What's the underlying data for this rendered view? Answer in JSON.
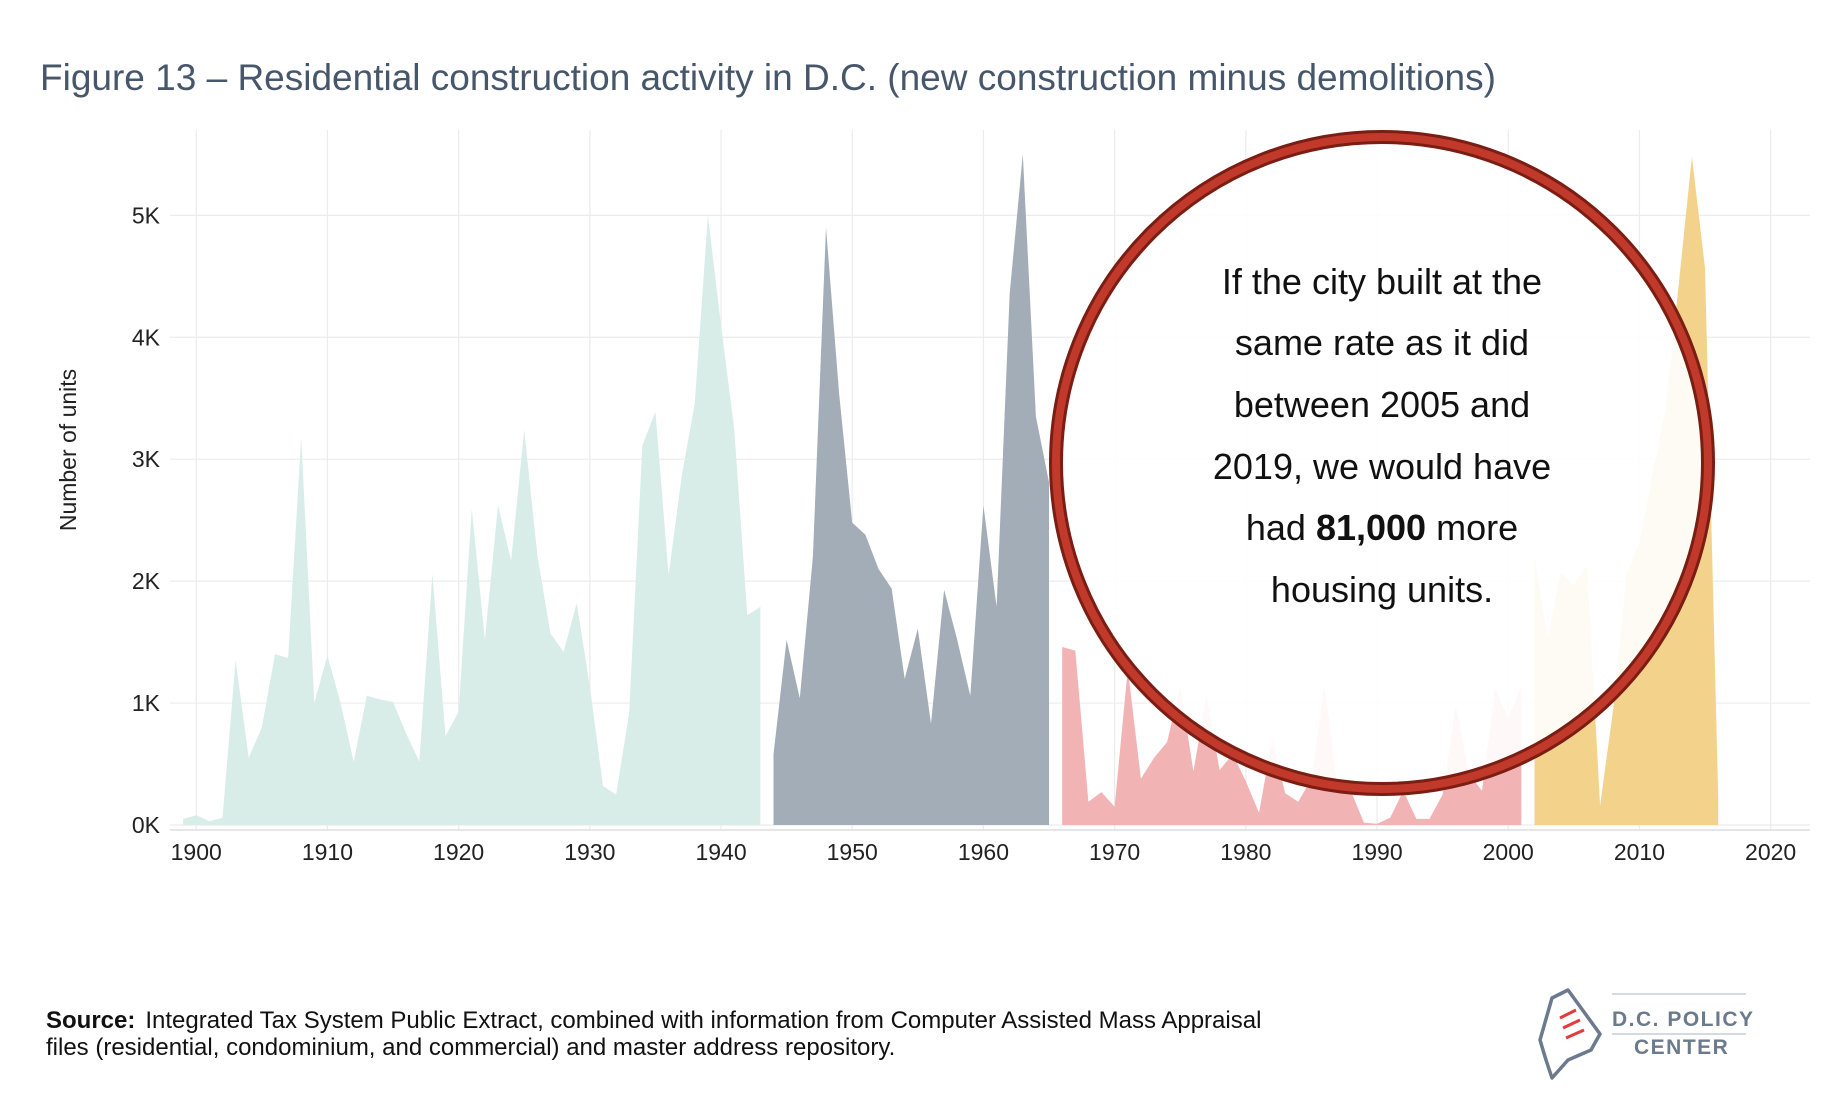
{
  "title": "Figure 13 – Residential construction activity in D.C. (new construction minus demolitions)",
  "source": {
    "label": "Source:",
    "line1": "Integrated Tax System Public Extract, combined with information from Computer Assisted Mass Appraisal",
    "line2": "files (residential, condominium, and commercial) and master address repository."
  },
  "callout": {
    "line1": "If the city built at the",
    "line2": "same rate as it did",
    "line3": "between 2005 and",
    "line4": "2019, we would have",
    "line5_pre": "had ",
    "line5_bold": "81,000",
    "line5_post": " more",
    "line6": "housing units.",
    "ring_color": "#c0392b"
  },
  "logo": {
    "line1": "D.C. POLICY",
    "line2": "CENTER"
  },
  "chart_data": {
    "type": "area",
    "title": "Figure 13 – Residential construction activity in D.C. (new construction minus demolitions)",
    "xlabel": "",
    "ylabel": "Number of units",
    "xlim": [
      1898,
      2023
    ],
    "ylim": [
      0,
      5700
    ],
    "xticks": [
      "1900",
      "1910",
      "1920",
      "1930",
      "1940",
      "1950",
      "1960",
      "1970",
      "1980",
      "1990",
      "2000",
      "2010",
      "2020"
    ],
    "yticks": [
      "0K",
      "1K",
      "2K",
      "3K",
      "4K",
      "5K"
    ],
    "grid": true,
    "series": [
      {
        "color": "#d8ede8",
        "points": [
          [
            1899,
            50
          ],
          [
            1900,
            80
          ],
          [
            1901,
            30
          ],
          [
            1902,
            60
          ],
          [
            1903,
            1350
          ],
          [
            1904,
            550
          ],
          [
            1905,
            800
          ],
          [
            1906,
            1400
          ],
          [
            1907,
            1370
          ],
          [
            1908,
            3180
          ],
          [
            1909,
            1000
          ],
          [
            1910,
            1390
          ],
          [
            1911,
            1000
          ],
          [
            1912,
            520
          ],
          [
            1913,
            1060
          ],
          [
            1914,
            1030
          ],
          [
            1915,
            1010
          ],
          [
            1916,
            750
          ],
          [
            1917,
            520
          ],
          [
            1918,
            2060
          ],
          [
            1919,
            730
          ],
          [
            1920,
            930
          ],
          [
            1921,
            2590
          ],
          [
            1922,
            1520
          ],
          [
            1923,
            2620
          ],
          [
            1924,
            2170
          ],
          [
            1925,
            3240
          ],
          [
            1926,
            2210
          ],
          [
            1927,
            1570
          ],
          [
            1928,
            1420
          ],
          [
            1929,
            1820
          ],
          [
            1930,
            1140
          ],
          [
            1931,
            320
          ],
          [
            1932,
            250
          ],
          [
            1933,
            920
          ],
          [
            1934,
            3110
          ],
          [
            1935,
            3390
          ],
          [
            1936,
            2050
          ],
          [
            1937,
            2860
          ],
          [
            1938,
            3460
          ],
          [
            1939,
            5000
          ],
          [
            1940,
            4100
          ],
          [
            1941,
            3250
          ],
          [
            1942,
            1720
          ],
          [
            1943,
            1790
          ]
        ]
      },
      {
        "color": "#a3adb8",
        "points": [
          [
            1944,
            580
          ],
          [
            1945,
            1520
          ],
          [
            1946,
            1040
          ],
          [
            1947,
            2200
          ],
          [
            1948,
            4900
          ],
          [
            1949,
            3540
          ],
          [
            1950,
            2480
          ],
          [
            1951,
            2380
          ],
          [
            1952,
            2100
          ],
          [
            1953,
            1940
          ],
          [
            1954,
            1200
          ],
          [
            1955,
            1610
          ],
          [
            1956,
            830
          ],
          [
            1957,
            1930
          ],
          [
            1958,
            1520
          ],
          [
            1959,
            1060
          ],
          [
            1960,
            2620
          ],
          [
            1961,
            1790
          ],
          [
            1962,
            4360
          ],
          [
            1963,
            5500
          ],
          [
            1964,
            3350
          ],
          [
            1965,
            2810
          ]
        ]
      },
      {
        "color": "#f2b3b5",
        "points": [
          [
            1966,
            1460
          ],
          [
            1967,
            1430
          ],
          [
            1968,
            190
          ],
          [
            1969,
            270
          ],
          [
            1970,
            150
          ],
          [
            1971,
            1280
          ],
          [
            1972,
            380
          ],
          [
            1973,
            550
          ],
          [
            1974,
            680
          ],
          [
            1975,
            1140
          ],
          [
            1976,
            440
          ],
          [
            1977,
            1060
          ],
          [
            1978,
            450
          ],
          [
            1979,
            580
          ],
          [
            1980,
            360
          ],
          [
            1981,
            100
          ],
          [
            1982,
            700
          ],
          [
            1983,
            260
          ],
          [
            1984,
            190
          ],
          [
            1985,
            380
          ],
          [
            1986,
            1150
          ],
          [
            1987,
            290
          ],
          [
            1988,
            280
          ],
          [
            1989,
            20
          ],
          [
            1990,
            10
          ],
          [
            1991,
            60
          ],
          [
            1992,
            280
          ],
          [
            1993,
            50
          ],
          [
            1994,
            50
          ],
          [
            1995,
            250
          ],
          [
            1996,
            980
          ],
          [
            1997,
            420
          ],
          [
            1998,
            280
          ],
          [
            1999,
            1120
          ],
          [
            2000,
            870
          ],
          [
            2001,
            1140
          ]
        ]
      },
      {
        "color": "#f3d38c",
        "points": [
          [
            2002,
            2200
          ],
          [
            2003,
            1530
          ],
          [
            2004,
            2070
          ],
          [
            2005,
            1970
          ],
          [
            2006,
            2130
          ],
          [
            2007,
            160
          ],
          [
            2008,
            950
          ],
          [
            2009,
            2050
          ],
          [
            2010,
            2320
          ],
          [
            2011,
            2880
          ],
          [
            2012,
            3420
          ],
          [
            2013,
            4440
          ],
          [
            2014,
            5480
          ],
          [
            2015,
            4570
          ],
          [
            2016,
            230
          ]
        ]
      }
    ]
  }
}
